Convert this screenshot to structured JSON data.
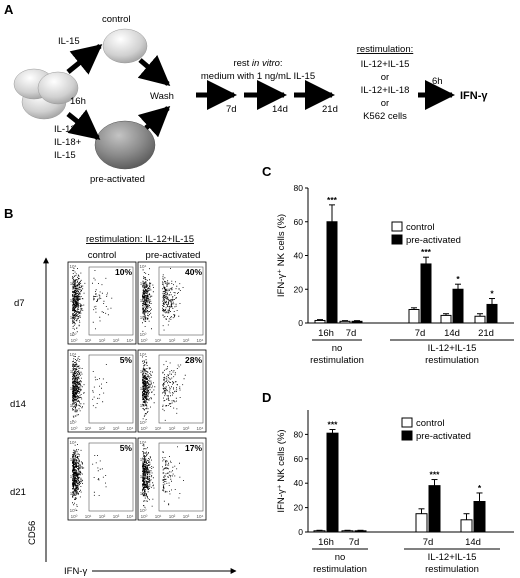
{
  "panelA": {
    "label": "A",
    "control": "control",
    "il15": "IL-15",
    "time16h": "16h",
    "cytokines": [
      "IL-12+",
      "IL-18+",
      "IL-15"
    ],
    "preactivated": "pre-activated",
    "wash": "Wash",
    "rest_prefix": "rest ",
    "rest_italic": "in vitro",
    "rest_suffix": ":",
    "medium": "medium with 1 ng/mL IL-15",
    "days": [
      "7d",
      "14d",
      "21d"
    ],
    "restim_title": "restimulation:",
    "restim_options": [
      "IL-12+IL-15",
      "or",
      "IL-12+IL-18",
      "or",
      "K562 cells"
    ],
    "time6h": "6h",
    "readout": "IFN-γ"
  },
  "panelB": {
    "label": "B",
    "title": "restimulation: IL-12+IL-15",
    "columns": [
      "control",
      "pre-activated"
    ],
    "rows": [
      "d7",
      "d14",
      "d21"
    ],
    "percents": [
      [
        "10%",
        "40%"
      ],
      [
        "5%",
        "28%"
      ],
      [
        "5%",
        "17%"
      ]
    ],
    "ylabel": "CD56",
    "xlabel": "IFN-γ",
    "axis_tick_labels": [
      "10⁰",
      "10¹",
      "10²",
      "10³",
      "10⁴"
    ]
  },
  "chart_data": [
    {
      "panel": "C",
      "type": "bar",
      "ylabel": "IFN-γ⁺ NK cells (%)",
      "ylim": [
        0,
        80
      ],
      "yticks": [
        0,
        20,
        40,
        60,
        80
      ],
      "categories": [
        "16h",
        "7d",
        "7d",
        "14d",
        "21d"
      ],
      "series": [
        {
          "name": "control",
          "color": "#ffffff",
          "values": [
            1.5,
            1.0,
            8,
            4.5,
            4
          ],
          "errors": [
            0.5,
            0.4,
            1,
            1,
            1.5
          ]
        },
        {
          "name": "pre-activated",
          "color": "#000000",
          "values": [
            60,
            1.0,
            35,
            20,
            11
          ],
          "errors": [
            10,
            0.4,
            4,
            3,
            3.5
          ]
        }
      ],
      "significance": [
        "***",
        "",
        "***",
        "*",
        "*"
      ],
      "groups": [
        {
          "label": [
            "no",
            "restimulation"
          ]
        },
        {
          "label": [
            "IL-12+IL-15",
            "restimulation"
          ]
        }
      ],
      "legend": "top-right"
    },
    {
      "panel": "D",
      "type": "bar",
      "ylabel": "IFN-γ⁺ NK cells (%)",
      "ylim": [
        0,
        100
      ],
      "yticks": [
        0,
        20,
        40,
        60,
        80
      ],
      "categories": [
        "16h",
        "7d",
        "7d",
        "14d"
      ],
      "series": [
        {
          "name": "control",
          "color": "#ffffff",
          "values": [
            1,
            1,
            15,
            10
          ],
          "errors": [
            0.4,
            0.4,
            4,
            5
          ]
        },
        {
          "name": "pre-activated",
          "color": "#000000",
          "values": [
            81,
            1,
            38,
            25
          ],
          "errors": [
            3,
            0.4,
            5,
            7
          ]
        }
      ],
      "significance": [
        "***",
        "",
        "***",
        "*"
      ],
      "groups": [
        {
          "label": [
            "no",
            "restimulation"
          ]
        },
        {
          "label": [
            "IL-12+IL-15",
            "restimulation"
          ]
        }
      ],
      "legend": "top-right"
    }
  ]
}
